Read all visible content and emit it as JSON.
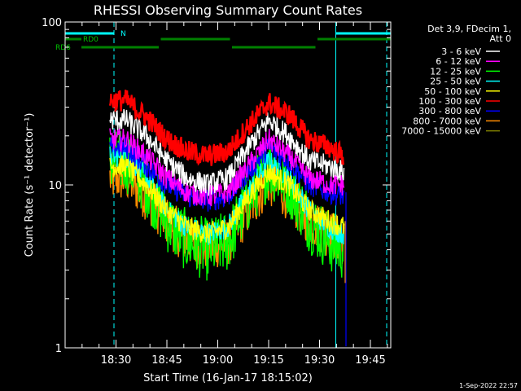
{
  "chart_data": {
    "type": "line",
    "title": "RHESSI Observing Summary Count Rates",
    "xlabel": "Start Time (16-Jan-17 18:15:02)",
    "ylabel": "Count Rate (s⁻¹ detector⁻¹)",
    "yscale": "log",
    "ylim": [
      1,
      100
    ],
    "y_ticks": [
      {
        "value": 1,
        "label": "1"
      },
      {
        "value": 10,
        "label": "10"
      },
      {
        "value": 100,
        "label": "100"
      }
    ],
    "x_range_minutes": [
      18.25,
      19.85
    ],
    "x_ticks": [
      {
        "t": 18.5,
        "label": "18:30"
      },
      {
        "t": 18.75,
        "label": "18:45"
      },
      {
        "t": 19.0,
        "label": "19:00"
      },
      {
        "t": 19.25,
        "label": "19:15"
      },
      {
        "t": 19.5,
        "label": "19:30"
      },
      {
        "t": 19.75,
        "label": "19:45"
      }
    ],
    "legend": {
      "position": "right",
      "header_lines": [
        "Det 3,9, FDecim 1,",
        "Att 0"
      ]
    },
    "series": [
      {
        "name": "3 - 6 keV",
        "color": "#ffffff",
        "t": [
          18.47,
          18.55,
          18.65,
          18.75,
          18.85,
          18.95,
          19.05,
          19.15,
          19.25,
          19.35,
          19.45,
          19.55,
          19.62
        ],
        "values": [
          25,
          25,
          20,
          14,
          11,
          10,
          11,
          17,
          25,
          20,
          14,
          13,
          12
        ]
      },
      {
        "name": "6 - 12 keV",
        "color": "#ff00ff",
        "t": [
          18.47,
          18.55,
          18.65,
          18.75,
          18.85,
          18.95,
          19.05,
          19.15,
          19.25,
          19.35,
          19.45,
          19.55,
          19.62
        ],
        "values": [
          19,
          19,
          15,
          11,
          9,
          8.5,
          9,
          13,
          19,
          15,
          11,
          10,
          10
        ]
      },
      {
        "name": "12 - 25 keV",
        "color": "#00ff00",
        "t": [
          18.47,
          18.55,
          18.65,
          18.75,
          18.85,
          18.95,
          19.05,
          19.15,
          19.25,
          19.35,
          19.45,
          19.55,
          19.62
        ],
        "values": [
          14,
          14,
          10,
          6,
          4.5,
          4,
          4.5,
          8,
          13,
          10,
          6,
          4.5,
          4
        ]
      },
      {
        "name": "25 - 50 keV",
        "color": "#00ffff",
        "t": [
          18.47,
          18.55,
          18.65,
          18.75,
          18.85,
          18.95,
          19.05,
          19.15,
          19.25,
          19.35,
          19.45,
          19.55,
          19.62
        ],
        "values": [
          15,
          15,
          11,
          7,
          5.5,
          5,
          5.5,
          9,
          14,
          11,
          7,
          5.5,
          5
        ]
      },
      {
        "name": "50 - 100 keV",
        "color": "#ffff00",
        "t": [
          18.47,
          18.55,
          18.65,
          18.75,
          18.85,
          18.95,
          19.05,
          19.15,
          19.25,
          19.35,
          19.45,
          19.55,
          19.62
        ],
        "values": [
          13,
          13,
          10,
          7,
          5.5,
          5,
          5.5,
          8.5,
          12,
          10,
          7,
          6,
          5.5
        ]
      },
      {
        "name": "100 - 300 keV",
        "color": "#ff0000",
        "t": [
          18.47,
          18.55,
          18.65,
          18.75,
          18.85,
          18.95,
          19.05,
          19.15,
          19.25,
          19.35,
          19.45,
          19.55,
          19.62
        ],
        "values": [
          33,
          33,
          26,
          19,
          16,
          15,
          16,
          23,
          32,
          27,
          19,
          17,
          15
        ]
      },
      {
        "name": "300 - 800 keV",
        "color": "#0000ff",
        "t": [
          18.47,
          18.55,
          18.65,
          18.75,
          18.85,
          18.95,
          19.05,
          19.15,
          19.25,
          19.35,
          19.45,
          19.55,
          19.62
        ],
        "values": [
          17,
          17,
          13,
          10,
          8.5,
          8,
          8.5,
          12,
          17,
          14,
          10,
          9,
          8.5
        ]
      },
      {
        "name": "800 - 7000 keV",
        "color": "#ff8c00",
        "t": [
          18.47,
          18.55,
          18.65,
          18.75,
          18.85,
          18.95,
          19.05,
          19.15,
          19.25,
          19.35,
          19.45,
          19.55,
          19.62
        ],
        "values": [
          11,
          11,
          8.5,
          6,
          4.5,
          4.2,
          4.5,
          7,
          10.5,
          8.5,
          6,
          5,
          4.5
        ]
      },
      {
        "name": "7000 - 15000 keV",
        "color": "#808000",
        "t": [],
        "values": []
      }
    ],
    "flags": [
      {
        "label": "N",
        "color": "#00ffff",
        "level": 3,
        "segments": [
          [
            18.25,
            18.49
          ],
          [
            19.58,
            19.85
          ]
        ]
      },
      {
        "label": "RD0",
        "color": "#008000",
        "level": 2,
        "segments": [
          [
            18.25,
            18.33
          ],
          [
            18.72,
            19.06
          ],
          [
            19.49,
            19.85
          ]
        ]
      },
      {
        "label": "RD6",
        "color": "#008000",
        "level": 1,
        "segments": [
          [
            18.33,
            18.71
          ],
          [
            19.07,
            19.48
          ]
        ]
      }
    ],
    "vlines": [
      {
        "t": 18.25,
        "color": "#00ffff",
        "style": "solid"
      },
      {
        "t": 18.49,
        "color": "#00ffff",
        "style": "dashed"
      },
      {
        "t": 19.58,
        "color": "#00ffff",
        "style": "solid"
      },
      {
        "t": 19.83,
        "color": "#00ffff",
        "style": "dashed"
      }
    ]
  },
  "timestamp": "1-Sep-2022 22:57"
}
